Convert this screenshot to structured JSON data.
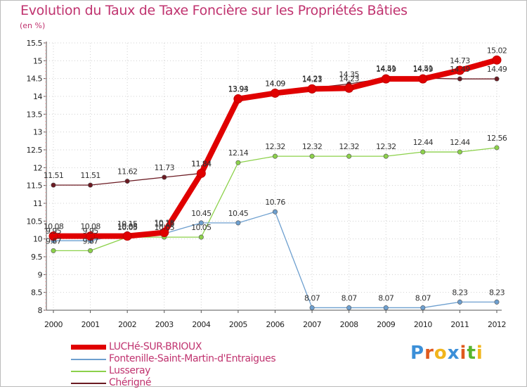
{
  "header": {
    "title": "Evolution du Taux de Taxe Foncière sur les Propriétés Bâties",
    "subtitle": "(en %)"
  },
  "chart_data": {
    "type": "line",
    "title": "Evolution du Taux de Taxe Foncière sur les Propriétés Bâties",
    "ylabel": "(en %)",
    "xlabel": "",
    "ylim": [
      8,
      15.5
    ],
    "yticks": [
      "8",
      "8.5",
      "9",
      "9.5",
      "10",
      "10.5",
      "11",
      "11.5",
      "12",
      "12.5",
      "13",
      "13.5",
      "14",
      "14.5",
      "15",
      "15.5"
    ],
    "categories": [
      "2000",
      "2001",
      "2002",
      "2003",
      "2004",
      "2005",
      "2006",
      "2007",
      "2008",
      "2009",
      "2010",
      "2011",
      "2012"
    ],
    "series": [
      {
        "name": "Chérigné",
        "color": "#6b1a22",
        "values": [
          11.51,
          11.51,
          11.62,
          11.73,
          11.84,
          13.94,
          14.09,
          14.23,
          14.35,
          14.51,
          14.51,
          14.49,
          14.49
        ],
        "labels": [
          "11.51",
          "11.51",
          "11.62",
          "11.73",
          "11.84",
          "13.94",
          "14.09",
          "14.23",
          "14.35",
          "14.51",
          "14.51",
          "14.49",
          "14.49"
        ]
      },
      {
        "name": "Lusseray",
        "color": "#8cd14a",
        "values": [
          9.67,
          9.67,
          10.05,
          10.05,
          10.05,
          12.14,
          12.32,
          12.32,
          12.32,
          12.32,
          12.44,
          12.44,
          12.56
        ],
        "labels": [
          "9.67",
          "9.67",
          "10.05",
          "10.05",
          "10.05",
          "12.14",
          "12.32",
          "12.32",
          "12.32",
          "12.32",
          "12.44",
          "12.44",
          "12.56"
        ]
      },
      {
        "name": "Fontenille-Saint-Martin-d'Entraigues",
        "color": "#6d9fcf",
        "values": [
          9.95,
          9.95,
          10.15,
          10.15,
          10.45,
          10.45,
          10.76,
          8.07,
          8.07,
          8.07,
          8.07,
          8.23,
          8.23
        ],
        "labels": [
          "9.95",
          "9.95",
          "10.15",
          "10.15",
          "10.45",
          "10.45",
          "10.76",
          "8.07",
          "8.07",
          "8.07",
          "8.07",
          "8.23",
          "8.23"
        ]
      },
      {
        "name": "LUCHé-SUR-BRIOUX",
        "color": "#e00000",
        "values": [
          10.08,
          10.08,
          10.08,
          10.18,
          11.84,
          13.93,
          14.09,
          14.21,
          14.23,
          14.49,
          14.49,
          14.73,
          15.02
        ],
        "labels": [
          "10.08",
          "10.08",
          "10.08",
          "10.18",
          "11.84",
          "13.93",
          "14.09",
          "14.21",
          "14.23",
          "14.49",
          "14.49",
          "14.73",
          "15.02"
        ]
      }
    ],
    "legend": [
      "LUCHé-SUR-BRIOUX",
      "Fontenille-Saint-Martin-d'Entraigues",
      "Lusseray",
      "Chérigné"
    ]
  },
  "legend": {
    "items": [
      {
        "label": "LUCHé-SUR-BRIOUX",
        "color": "#e00000"
      },
      {
        "label": "Fontenille-Saint-Martin-d'Entraigues",
        "color": "#6d9fcf"
      },
      {
        "label": "Lusseray",
        "color": "#8cd14a"
      },
      {
        "label": "Chérigné",
        "color": "#6b1a22"
      }
    ]
  },
  "logo": {
    "letters": [
      "P",
      "r",
      "o",
      "x",
      "i",
      "t",
      "i"
    ],
    "colors": [
      "#3b8fd8",
      "#e05a1e",
      "#f1b51c",
      "#3b8fd8",
      "#e05a1e",
      "#58b52e",
      "#f1b51c"
    ]
  }
}
